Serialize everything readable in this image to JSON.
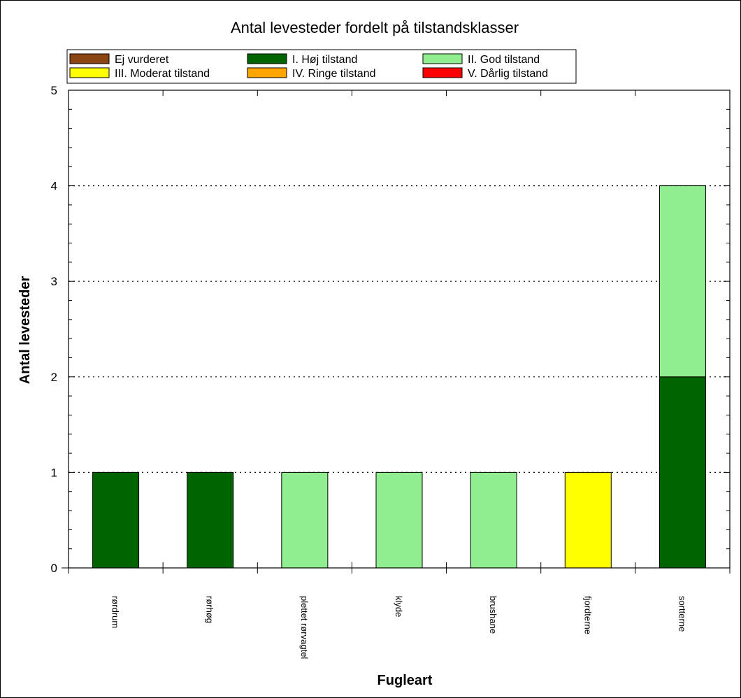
{
  "chart_data": {
    "type": "bar",
    "stacked": true,
    "title": "Antal levesteder fordelt på tilstandsklasser",
    "xlabel": "Fugleart",
    "ylabel": "Antal levesteder",
    "ylim": [
      0,
      5
    ],
    "yticks": [
      "0",
      "1",
      "2",
      "3",
      "4",
      "5"
    ],
    "grid": "horizontal-dotted",
    "legend_position": "top",
    "categories": [
      "rørdrum",
      "rørhøg",
      "plettet rørvagtel",
      "klyde",
      "brushane",
      "fjordterne",
      "sortterne"
    ],
    "series": [
      {
        "name": "Ej vurderet",
        "color": "#8B4513",
        "values": [
          0,
          0,
          0,
          0,
          0,
          0,
          0
        ]
      },
      {
        "name": "I. Høj tilstand",
        "color": "#006400",
        "values": [
          1,
          1,
          0,
          0,
          0,
          0,
          2
        ]
      },
      {
        "name": "II. God tilstand",
        "color": "#90EE90",
        "values": [
          0,
          0,
          1,
          1,
          1,
          0,
          2
        ]
      },
      {
        "name": "III. Moderat tilstand",
        "color": "#FFFF00",
        "values": [
          0,
          0,
          0,
          0,
          0,
          1,
          0
        ]
      },
      {
        "name": "IV. Ringe tilstand",
        "color": "#FFA500",
        "values": [
          0,
          0,
          0,
          0,
          0,
          0,
          0
        ]
      },
      {
        "name": "V. Dårlig tilstand",
        "color": "#FF0000",
        "values": [
          0,
          0,
          0,
          0,
          0,
          0,
          0
        ]
      }
    ]
  }
}
